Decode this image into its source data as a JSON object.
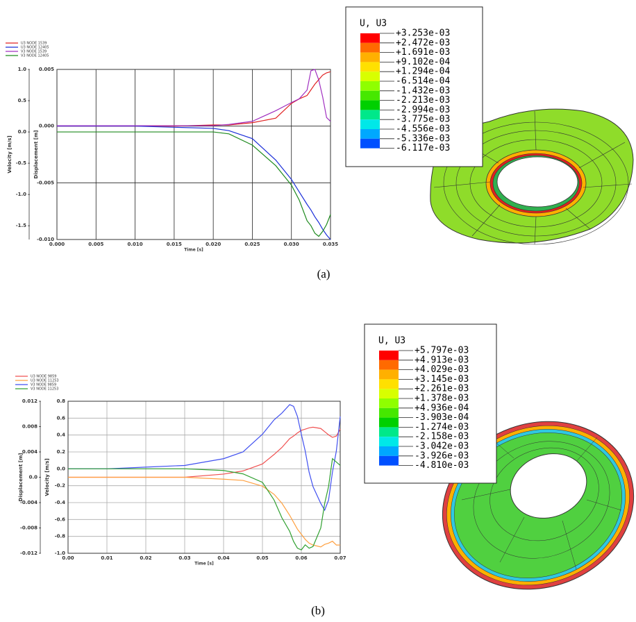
{
  "chart_data": [
    {
      "type": "line",
      "xlabel": "Time [s]",
      "ylabel": "Displacement [m]",
      "y2label": "Velocity [m/s]",
      "x": [
        0,
        0.005,
        0.01,
        0.015,
        0.02,
        0.022,
        0.025,
        0.028,
        0.03,
        0.031,
        0.032,
        0.0325,
        0.033,
        0.0335,
        0.034,
        0.0345,
        0.035
      ],
      "series": [
        {
          "name": "U3 NODE 1539",
          "color": "#e02020",
          "values": [
            0,
            0,
            0,
            0,
            0.0001,
            0.0001,
            0.0003,
            0.0007,
            0.002,
            0.0024,
            0.0027,
            0.0032,
            0.0037,
            0.0041,
            0.0045,
            0.0047,
            0.0048
          ]
        },
        {
          "name": "U3 NODE 12405",
          "color": "#1a2ed8",
          "values": [
            0,
            0,
            0,
            -0.0001,
            -0.0002,
            -0.0004,
            -0.0011,
            -0.003,
            -0.0047,
            -0.0058,
            -0.0069,
            -0.0074,
            -0.008,
            -0.0085,
            -0.0091,
            -0.0096,
            -0.01
          ]
        },
        {
          "name": "V3 NODE 1539",
          "color": "#a030c0",
          "axis": "y2",
          "values": [
            0.1,
            0.1,
            0.1,
            0.1,
            0.1,
            0.12,
            0.17,
            0.34,
            0.47,
            0.53,
            0.67,
            0.98,
            1.0,
            0.83,
            0.56,
            0.23,
            0.17
          ]
        },
        {
          "name": "V3 NODE 12405",
          "color": "#1e8a1e",
          "axis": "y2",
          "values": [
            0,
            0,
            0,
            0,
            0,
            -0.03,
            -0.21,
            -0.54,
            -0.85,
            -1.09,
            -1.42,
            -1.5,
            -1.62,
            -1.67,
            -1.59,
            -1.48,
            -1.32
          ]
        }
      ],
      "xlim": [
        0,
        0.035
      ],
      "xticks": [
        {
          "value": 0,
          "label": "0.000"
        },
        0.005,
        {
          "value": 0.01,
          "label": "0.010"
        },
        0.015,
        {
          "value": 0.02,
          "label": "0.020"
        },
        0.025,
        {
          "value": 0.03,
          "label": "0.030"
        },
        0.035
      ],
      "ylim": [
        -0.01,
        0.005
      ],
      "yticks": [
        0.005,
        {
          "value": 0,
          "label": "0.000"
        },
        -0.005,
        {
          "value": -0.01,
          "label": "-0.010"
        }
      ],
      "y2lim": [
        -1.72,
        1.0
      ],
      "y2ticks": [
        {
          "value": 1,
          "label": "1.0"
        },
        0.5,
        {
          "value": 0,
          "label": "0.0"
        },
        -0.5,
        {
          "value": -1,
          "label": "-1.0"
        },
        -1.5
      ],
      "grid": true
    },
    {
      "type": "line",
      "xlabel": "Time [s]",
      "ylabel": "Velocity [m/s]",
      "y2label": "Displacement [m]",
      "x": [
        0,
        0.01,
        0.02,
        0.03,
        0.04,
        0.045,
        0.05,
        0.053,
        0.055,
        0.057,
        0.058,
        0.059,
        0.06,
        0.061,
        0.062,
        0.063,
        0.065,
        0.066,
        0.067,
        0.068,
        0.069,
        0.07
      ],
      "series": [
        {
          "name": "U3 NODE 9859",
          "color": "#f05050",
          "axis": "y2",
          "values": [
            0,
            0,
            0,
            0,
            0.0005,
            0.001,
            0.0021,
            0.0036,
            0.0047,
            0.0061,
            0.0065,
            0.007,
            0.0074,
            0.0076,
            0.0078,
            0.0079,
            0.0077,
            0.0072,
            0.0067,
            0.0063,
            0.0065,
            0.0076
          ]
        },
        {
          "name": "U3 NODE 11253",
          "color": "#ffa040",
          "axis": "y2",
          "values": [
            0,
            0,
            0,
            0,
            -0.0003,
            -0.0005,
            -0.0014,
            -0.0027,
            -0.0041,
            -0.006,
            -0.0071,
            -0.0082,
            -0.009,
            -0.0098,
            -0.0104,
            -0.0107,
            -0.011,
            -0.0106,
            -0.0104,
            -0.0101,
            -0.0107,
            -0.0107
          ]
        },
        {
          "name": "V3 NODE 9859",
          "color": "#4050f0",
          "values": [
            0,
            0,
            0.02,
            0.04,
            0.12,
            0.2,
            0.41,
            0.58,
            0.66,
            0.76,
            0.74,
            0.62,
            0.41,
            0.21,
            -0.04,
            -0.21,
            -0.41,
            -0.49,
            -0.37,
            -0.04,
            0.21,
            0.62
          ]
        },
        {
          "name": "V3 NODE 11253",
          "color": "#30a030",
          "values": [
            0,
            0,
            0,
            0,
            -0.02,
            -0.06,
            -0.16,
            -0.37,
            -0.58,
            -0.74,
            -0.86,
            -0.94,
            -0.96,
            -0.9,
            -0.94,
            -0.92,
            -0.7,
            -0.41,
            -0.21,
            0.12,
            0.08,
            0.04
          ]
        }
      ],
      "xlim": [
        0,
        0.07
      ],
      "xticks": [
        {
          "value": 0,
          "label": "0.00"
        },
        0.01,
        0.02,
        0.03,
        0.04,
        0.05,
        0.06,
        0.07
      ],
      "ylim": [
        -1.0,
        0.8
      ],
      "yticks": [
        0.8,
        0.6,
        0.4,
        0.2,
        {
          "value": 0,
          "label": "0.0"
        },
        -0.2,
        -0.4,
        -0.6,
        -0.8,
        {
          "value": -1,
          "label": "-1.0"
        }
      ],
      "y2lim": [
        -0.012,
        0.012
      ],
      "y2ticks": [
        0.012,
        0.008,
        0.004,
        {
          "value": 0,
          "label": "0.0"
        },
        -0.004,
        -0.008,
        -0.012
      ],
      "grid": true
    }
  ],
  "contour_legends": [
    {
      "title": "U, U3",
      "labels": [
        "+3.253e-03",
        "+2.472e-03",
        "+1.691e-03",
        "+9.102e-04",
        "+1.294e-04",
        "-6.514e-04",
        "-1.432e-03",
        "-2.213e-03",
        "-2.994e-03",
        "-3.775e-03",
        "-4.556e-03",
        "-5.336e-03",
        "-6.117e-03"
      ]
    },
    {
      "title": "U, U3",
      "labels": [
        "+5.797e-03",
        "+4.913e-03",
        "+4.029e-03",
        "+3.145e-03",
        "+2.261e-03",
        "+1.378e-03",
        "+4.936e-04",
        "-3.903e-04",
        "-1.274e-03",
        "-2.158e-03",
        "-3.042e-03",
        "-3.926e-03",
        "-4.810e-03"
      ]
    }
  ],
  "captions": [
    "(a)",
    "(b)"
  ]
}
